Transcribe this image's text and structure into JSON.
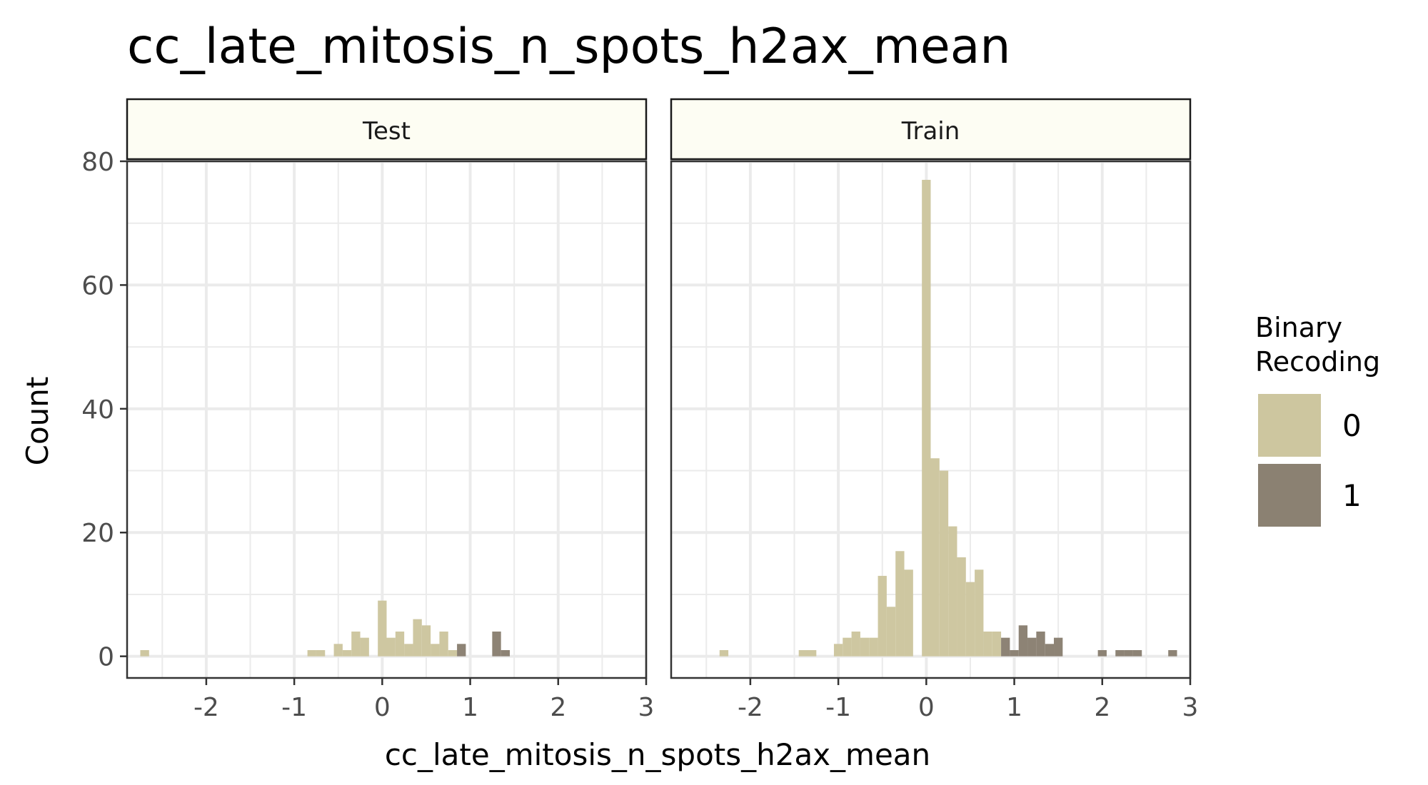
{
  "chart_data": {
    "type": "histogram",
    "title": "cc_late_mitosis_n_spots_h2ax_mean",
    "xlabel": "cc_late_mitosis_n_spots_h2ax_mean",
    "ylabel": "Count",
    "xlim": [
      -2.9,
      3.0
    ],
    "ylim": [
      -3.5,
      80
    ],
    "x_ticks": [
      -2,
      -1,
      0,
      1,
      2,
      3
    ],
    "x_tick_labels": [
      "-2",
      "-1",
      "0",
      "1",
      "2",
      "3"
    ],
    "y_ticks": [
      0,
      20,
      40,
      60,
      80
    ],
    "y_tick_labels": [
      "0",
      "20",
      "40",
      "60",
      "80"
    ],
    "bin_width": 0.1,
    "grid": true,
    "legend": {
      "title": "Binary\nRecoding",
      "title_lines": [
        "Binary",
        "Recoding"
      ],
      "position": "right",
      "items": [
        {
          "label": "0",
          "color": "#cdc69f"
        },
        {
          "label": "1",
          "color": "#8b8172"
        }
      ]
    },
    "panels": [
      {
        "name": "Test",
        "bars": [
          {
            "x": -2.7,
            "count": 1,
            "group": "0"
          },
          {
            "x": -0.8,
            "count": 1,
            "group": "0"
          },
          {
            "x": -0.7,
            "count": 1,
            "group": "0"
          },
          {
            "x": -0.5,
            "count": 2,
            "group": "0"
          },
          {
            "x": -0.4,
            "count": 1,
            "group": "0"
          },
          {
            "x": -0.3,
            "count": 4,
            "group": "0"
          },
          {
            "x": -0.2,
            "count": 3,
            "group": "0"
          },
          {
            "x": 0.0,
            "count": 9,
            "group": "0"
          },
          {
            "x": 0.1,
            "count": 3,
            "group": "0"
          },
          {
            "x": 0.2,
            "count": 4,
            "group": "0"
          },
          {
            "x": 0.3,
            "count": 2,
            "group": "0"
          },
          {
            "x": 0.4,
            "count": 6,
            "group": "0"
          },
          {
            "x": 0.5,
            "count": 5,
            "group": "0"
          },
          {
            "x": 0.6,
            "count": 2,
            "group": "0"
          },
          {
            "x": 0.7,
            "count": 4,
            "group": "0"
          },
          {
            "x": 0.8,
            "count": 1,
            "group": "0"
          },
          {
            "x": 0.9,
            "count": 2,
            "group": "1"
          },
          {
            "x": 1.3,
            "count": 4,
            "group": "1"
          },
          {
            "x": 1.4,
            "count": 1,
            "group": "1"
          }
        ]
      },
      {
        "name": "Train",
        "bars": [
          {
            "x": -2.3,
            "count": 1,
            "group": "0"
          },
          {
            "x": -1.4,
            "count": 1,
            "group": "0"
          },
          {
            "x": -1.3,
            "count": 1,
            "group": "0"
          },
          {
            "x": -1.0,
            "count": 2,
            "group": "0"
          },
          {
            "x": -0.9,
            "count": 3,
            "group": "0"
          },
          {
            "x": -0.8,
            "count": 4,
            "group": "0"
          },
          {
            "x": -0.7,
            "count": 3,
            "group": "0"
          },
          {
            "x": -0.6,
            "count": 3,
            "group": "0"
          },
          {
            "x": -0.5,
            "count": 13,
            "group": "0"
          },
          {
            "x": -0.4,
            "count": 8,
            "group": "0"
          },
          {
            "x": -0.3,
            "count": 17,
            "group": "0"
          },
          {
            "x": -0.2,
            "count": 14,
            "group": "0"
          },
          {
            "x": 0.0,
            "count": 77,
            "group": "0"
          },
          {
            "x": 0.1,
            "count": 32,
            "group": "0"
          },
          {
            "x": 0.2,
            "count": 30,
            "group": "0"
          },
          {
            "x": 0.3,
            "count": 21,
            "group": "0"
          },
          {
            "x": 0.4,
            "count": 16,
            "group": "0"
          },
          {
            "x": 0.5,
            "count": 12,
            "group": "0"
          },
          {
            "x": 0.6,
            "count": 14,
            "group": "0"
          },
          {
            "x": 0.7,
            "count": 4,
            "group": "0"
          },
          {
            "x": 0.8,
            "count": 4,
            "group": "0"
          },
          {
            "x": 0.9,
            "count": 3,
            "group": "1"
          },
          {
            "x": 1.0,
            "count": 1,
            "group": "1"
          },
          {
            "x": 1.1,
            "count": 5,
            "group": "1"
          },
          {
            "x": 1.2,
            "count": 3,
            "group": "1"
          },
          {
            "x": 1.3,
            "count": 4,
            "group": "1"
          },
          {
            "x": 1.4,
            "count": 2,
            "group": "1"
          },
          {
            "x": 1.5,
            "count": 3,
            "group": "1"
          },
          {
            "x": 2.0,
            "count": 1,
            "group": "1"
          },
          {
            "x": 2.2,
            "count": 1,
            "group": "1"
          },
          {
            "x": 2.3,
            "count": 1,
            "group": "1"
          },
          {
            "x": 2.4,
            "count": 1,
            "group": "1"
          },
          {
            "x": 2.8,
            "count": 1,
            "group": "1"
          }
        ]
      }
    ]
  }
}
